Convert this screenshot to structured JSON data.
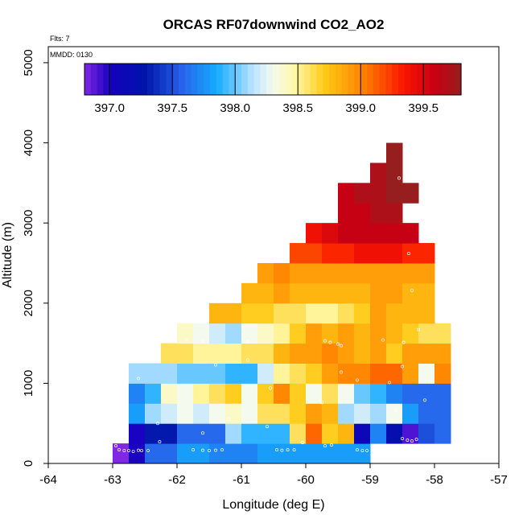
{
  "chart_data": {
    "type": "heatmap",
    "title": "ORCAS RF07downwind CO2_AO2",
    "annotations": {
      "flights": "Flts: 7",
      "date": "MMDD: 0130"
    },
    "xlabel": "Longitude (deg E)",
    "ylabel": "Altitude (m)",
    "xlim": [
      -64,
      -57
    ],
    "ylim": [
      0,
      5200
    ],
    "x_ticks": [
      -64,
      -63,
      -62,
      -61,
      -60,
      -59,
      -58,
      -57
    ],
    "x_tick_labels": [
      "-64",
      "-63",
      "-62",
      "-61",
      "-60",
      "-59",
      "-58",
      "-57"
    ],
    "y_ticks": [
      0,
      1000,
      2000,
      3000,
      4000,
      5000
    ],
    "y_tick_labels": [
      "0",
      "1000",
      "2000",
      "3000",
      "4000",
      "5000"
    ],
    "cell_width_deg": 0.25,
    "cell_height_m": 250,
    "grid_x_start": -63,
    "colorbar": {
      "min": 396.8,
      "max": 399.8,
      "ticks": [
        397.0,
        397.5,
        398.0,
        398.5,
        399.0,
        399.5
      ],
      "tick_labels": [
        "397.0",
        "397.5",
        "398.0",
        "398.5",
        "399.0",
        "399.5"
      ]
    },
    "rows": [
      {
        "alt": 0,
        "start": 0,
        "values": [
          396.8,
          397.0,
          397.6,
          397.6,
          397.8,
          397.8,
          397.7,
          397.7,
          397.7,
          397.8,
          397.8,
          397.8,
          397.8,
          397.8,
          397.8,
          397.8
        ]
      },
      {
        "alt": 250,
        "start": 1,
        "values": [
          397.0,
          397.3,
          397.3,
          397.6,
          397.6,
          397.6,
          398.1,
          397.9,
          397.9,
          397.9,
          398.6,
          399.1,
          398.7,
          398.8,
          397.1,
          397.7,
          397.2,
          396.9,
          397.5,
          397.6
        ]
      },
      {
        "alt": 500,
        "start": 1,
        "values": [
          397.8,
          398.1,
          398.2,
          398.3,
          398.2,
          398.3,
          398.4,
          398.3,
          398.6,
          398.6,
          398.7,
          398.9,
          398.8,
          398.1,
          398.2,
          398.1,
          398.3,
          397.8,
          397.6,
          397.6
        ]
      },
      {
        "alt": 750,
        "start": 1,
        "values": [
          397.7,
          397.9,
          398.4,
          398.3,
          398.5,
          398.6,
          398.7,
          398.3,
          398.7,
          399.0,
          398.7,
          398.3,
          398.6,
          398.3,
          398.0,
          397.9,
          397.7,
          397.6,
          397.6,
          397.6
        ]
      },
      {
        "alt": 1000,
        "start": 1,
        "values": [
          398.1,
          398.1,
          398.1,
          398.0,
          398.0,
          398.0,
          397.9,
          397.9,
          398.2,
          398.5,
          398.6,
          398.7,
          398.9,
          399.0,
          399.0,
          399.1,
          399.1,
          398.9,
          398.3,
          399.0
        ]
      },
      {
        "alt": 1250,
        "start": 3,
        "values": [
          398.6,
          398.6,
          398.5,
          398.5,
          398.5,
          398.6,
          398.6,
          398.8,
          398.9,
          398.9,
          399.0,
          398.9,
          398.8,
          398.9,
          398.7,
          398.9,
          398.9,
          398.9
        ]
      },
      {
        "alt": 1500,
        "start": 4,
        "values": [
          398.4,
          398.3,
          398.2,
          398.1,
          398.3,
          398.4,
          398.5,
          398.7,
          398.9,
          398.8,
          398.9,
          398.8,
          398.9,
          398.8,
          398.7,
          398.6,
          398.6
        ]
      },
      {
        "alt": 1750,
        "start": 6,
        "values": [
          398.8,
          398.8,
          398.7,
          398.7,
          398.6,
          398.6,
          398.5,
          398.5,
          398.6,
          398.7,
          398.9,
          398.8,
          398.8,
          398.8
        ]
      },
      {
        "alt": 2000,
        "start": 8,
        "values": [
          398.8,
          398.8,
          398.9,
          398.8,
          398.8,
          398.8,
          398.8,
          398.8,
          398.9,
          398.9,
          398.8,
          398.8
        ]
      },
      {
        "alt": 2250,
        "start": 9,
        "values": [
          398.9,
          399.0,
          398.9,
          398.9,
          398.9,
          398.9,
          398.9,
          398.9,
          398.9,
          398.9,
          398.9
        ]
      },
      {
        "alt": 2500,
        "start": 11,
        "values": [
          399.2,
          399.2,
          399.3,
          399.3,
          399.4,
          399.4,
          399.4,
          399.3,
          399.3
        ]
      },
      {
        "alt": 2750,
        "start": 12,
        "values": [
          399.4,
          399.5,
          399.6,
          399.6,
          399.6,
          399.6,
          399.6
        ]
      },
      {
        "alt": 3000,
        "start": 14,
        "values": [
          399.6,
          399.6,
          399.7,
          399.7
        ]
      },
      {
        "alt": 3250,
        "start": 14,
        "values": [
          399.6,
          399.7,
          399.7,
          399.8,
          399.9
        ]
      },
      {
        "alt": 3500,
        "start": 16,
        "values": [
          399.7,
          399.8
        ]
      },
      {
        "alt": 3750,
        "start": 17,
        "values": [
          399.8
        ]
      }
    ],
    "sample_points": [
      [
        -62.9,
        170
      ],
      [
        -62.82,
        160
      ],
      [
        -62.75,
        160
      ],
      [
        -62.68,
        150
      ],
      [
        -62.6,
        165
      ],
      [
        -62.55,
        160
      ],
      [
        -62.45,
        160
      ],
      [
        -62.95,
        220
      ],
      [
        -62.27,
        270
      ],
      [
        -61.75,
        170
      ],
      [
        -61.6,
        165
      ],
      [
        -61.5,
        160
      ],
      [
        -61.4,
        165
      ],
      [
        -61.3,
        170
      ],
      [
        -61.6,
        380
      ],
      [
        -60.45,
        170
      ],
      [
        -60.37,
        165
      ],
      [
        -60.28,
        170
      ],
      [
        -60.18,
        170
      ],
      [
        -60.05,
        260
      ],
      [
        -59.7,
        220
      ],
      [
        -59.6,
        230
      ],
      [
        -59.2,
        170
      ],
      [
        -59.12,
        160
      ],
      [
        -59.05,
        160
      ],
      [
        -58.97,
        160
      ],
      [
        -58.89,
        170
      ],
      [
        -58.8,
        210
      ],
      [
        -58.5,
        310
      ],
      [
        -58.42,
        290
      ],
      [
        -58.35,
        280
      ],
      [
        -58.28,
        300
      ],
      [
        -62.98,
        490
      ],
      [
        -62.3,
        500
      ],
      [
        -61.2,
        550
      ],
      [
        -60.6,
        460
      ],
      [
        -59.75,
        760
      ],
      [
        -58.6,
        660
      ],
      [
        -58.15,
        790
      ],
      [
        -62.6,
        1060
      ],
      [
        -61.4,
        1230
      ],
      [
        -60.9,
        1290
      ],
      [
        -60.55,
        940
      ],
      [
        -59.45,
        1140
      ],
      [
        -59.2,
        1040
      ],
      [
        -58.7,
        1010
      ],
      [
        -58.5,
        1210
      ],
      [
        -61.85,
        1540
      ],
      [
        -61.6,
        1530
      ],
      [
        -60.9,
        1520
      ],
      [
        -59.7,
        1530
      ],
      [
        -59.62,
        1510
      ],
      [
        -59.5,
        1490
      ],
      [
        -59.45,
        1470
      ],
      [
        -58.8,
        1540
      ],
      [
        -58.48,
        1510
      ],
      [
        -58.25,
        1670
      ],
      [
        -58.35,
        2160
      ],
      [
        -58.4,
        2620
      ],
      [
        -58.45,
        3090
      ],
      [
        -58.55,
        3560
      ]
    ]
  }
}
